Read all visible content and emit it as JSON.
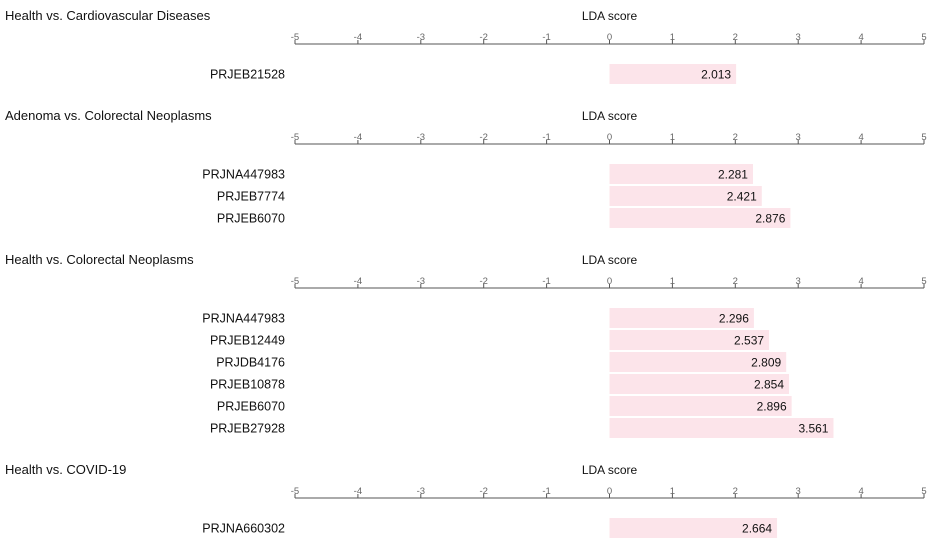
{
  "axis": {
    "label": "LDA score",
    "ticks": [
      -5,
      -4,
      -3,
      -2,
      -1,
      0,
      1,
      2,
      3,
      4,
      5
    ],
    "xlim": [
      -5,
      5
    ]
  },
  "colors": {
    "bar": "#fce4ea",
    "axis": "#555555",
    "text": "#111111"
  },
  "chart_data": [
    {
      "type": "bar",
      "title": "Health vs. Cardiovascular Diseases",
      "xlabel": "LDA score",
      "xlim": [
        -5,
        5
      ],
      "categories": [
        "PRJEB21528"
      ],
      "values": [
        2.013
      ]
    },
    {
      "type": "bar",
      "title": "Adenoma vs. Colorectal Neoplasms",
      "xlabel": "LDA score",
      "xlim": [
        -5,
        5
      ],
      "categories": [
        "PRJNA447983",
        "PRJEB7774",
        "PRJEB6070"
      ],
      "values": [
        2.281,
        2.421,
        2.876
      ]
    },
    {
      "type": "bar",
      "title": "Health vs. Colorectal Neoplasms",
      "xlabel": "LDA score",
      "xlim": [
        -5,
        5
      ],
      "categories": [
        "PRJNA447983",
        "PRJEB12449",
        "PRJDB4176",
        "PRJEB10878",
        "PRJEB6070",
        "PRJEB27928"
      ],
      "values": [
        2.296,
        2.537,
        2.809,
        2.854,
        2.896,
        3.561
      ]
    },
    {
      "type": "bar",
      "title": "Health vs. COVID-19",
      "xlabel": "LDA score",
      "xlim": [
        -5,
        5
      ],
      "categories": [
        "PRJNA660302"
      ],
      "values": [
        2.664
      ]
    }
  ]
}
